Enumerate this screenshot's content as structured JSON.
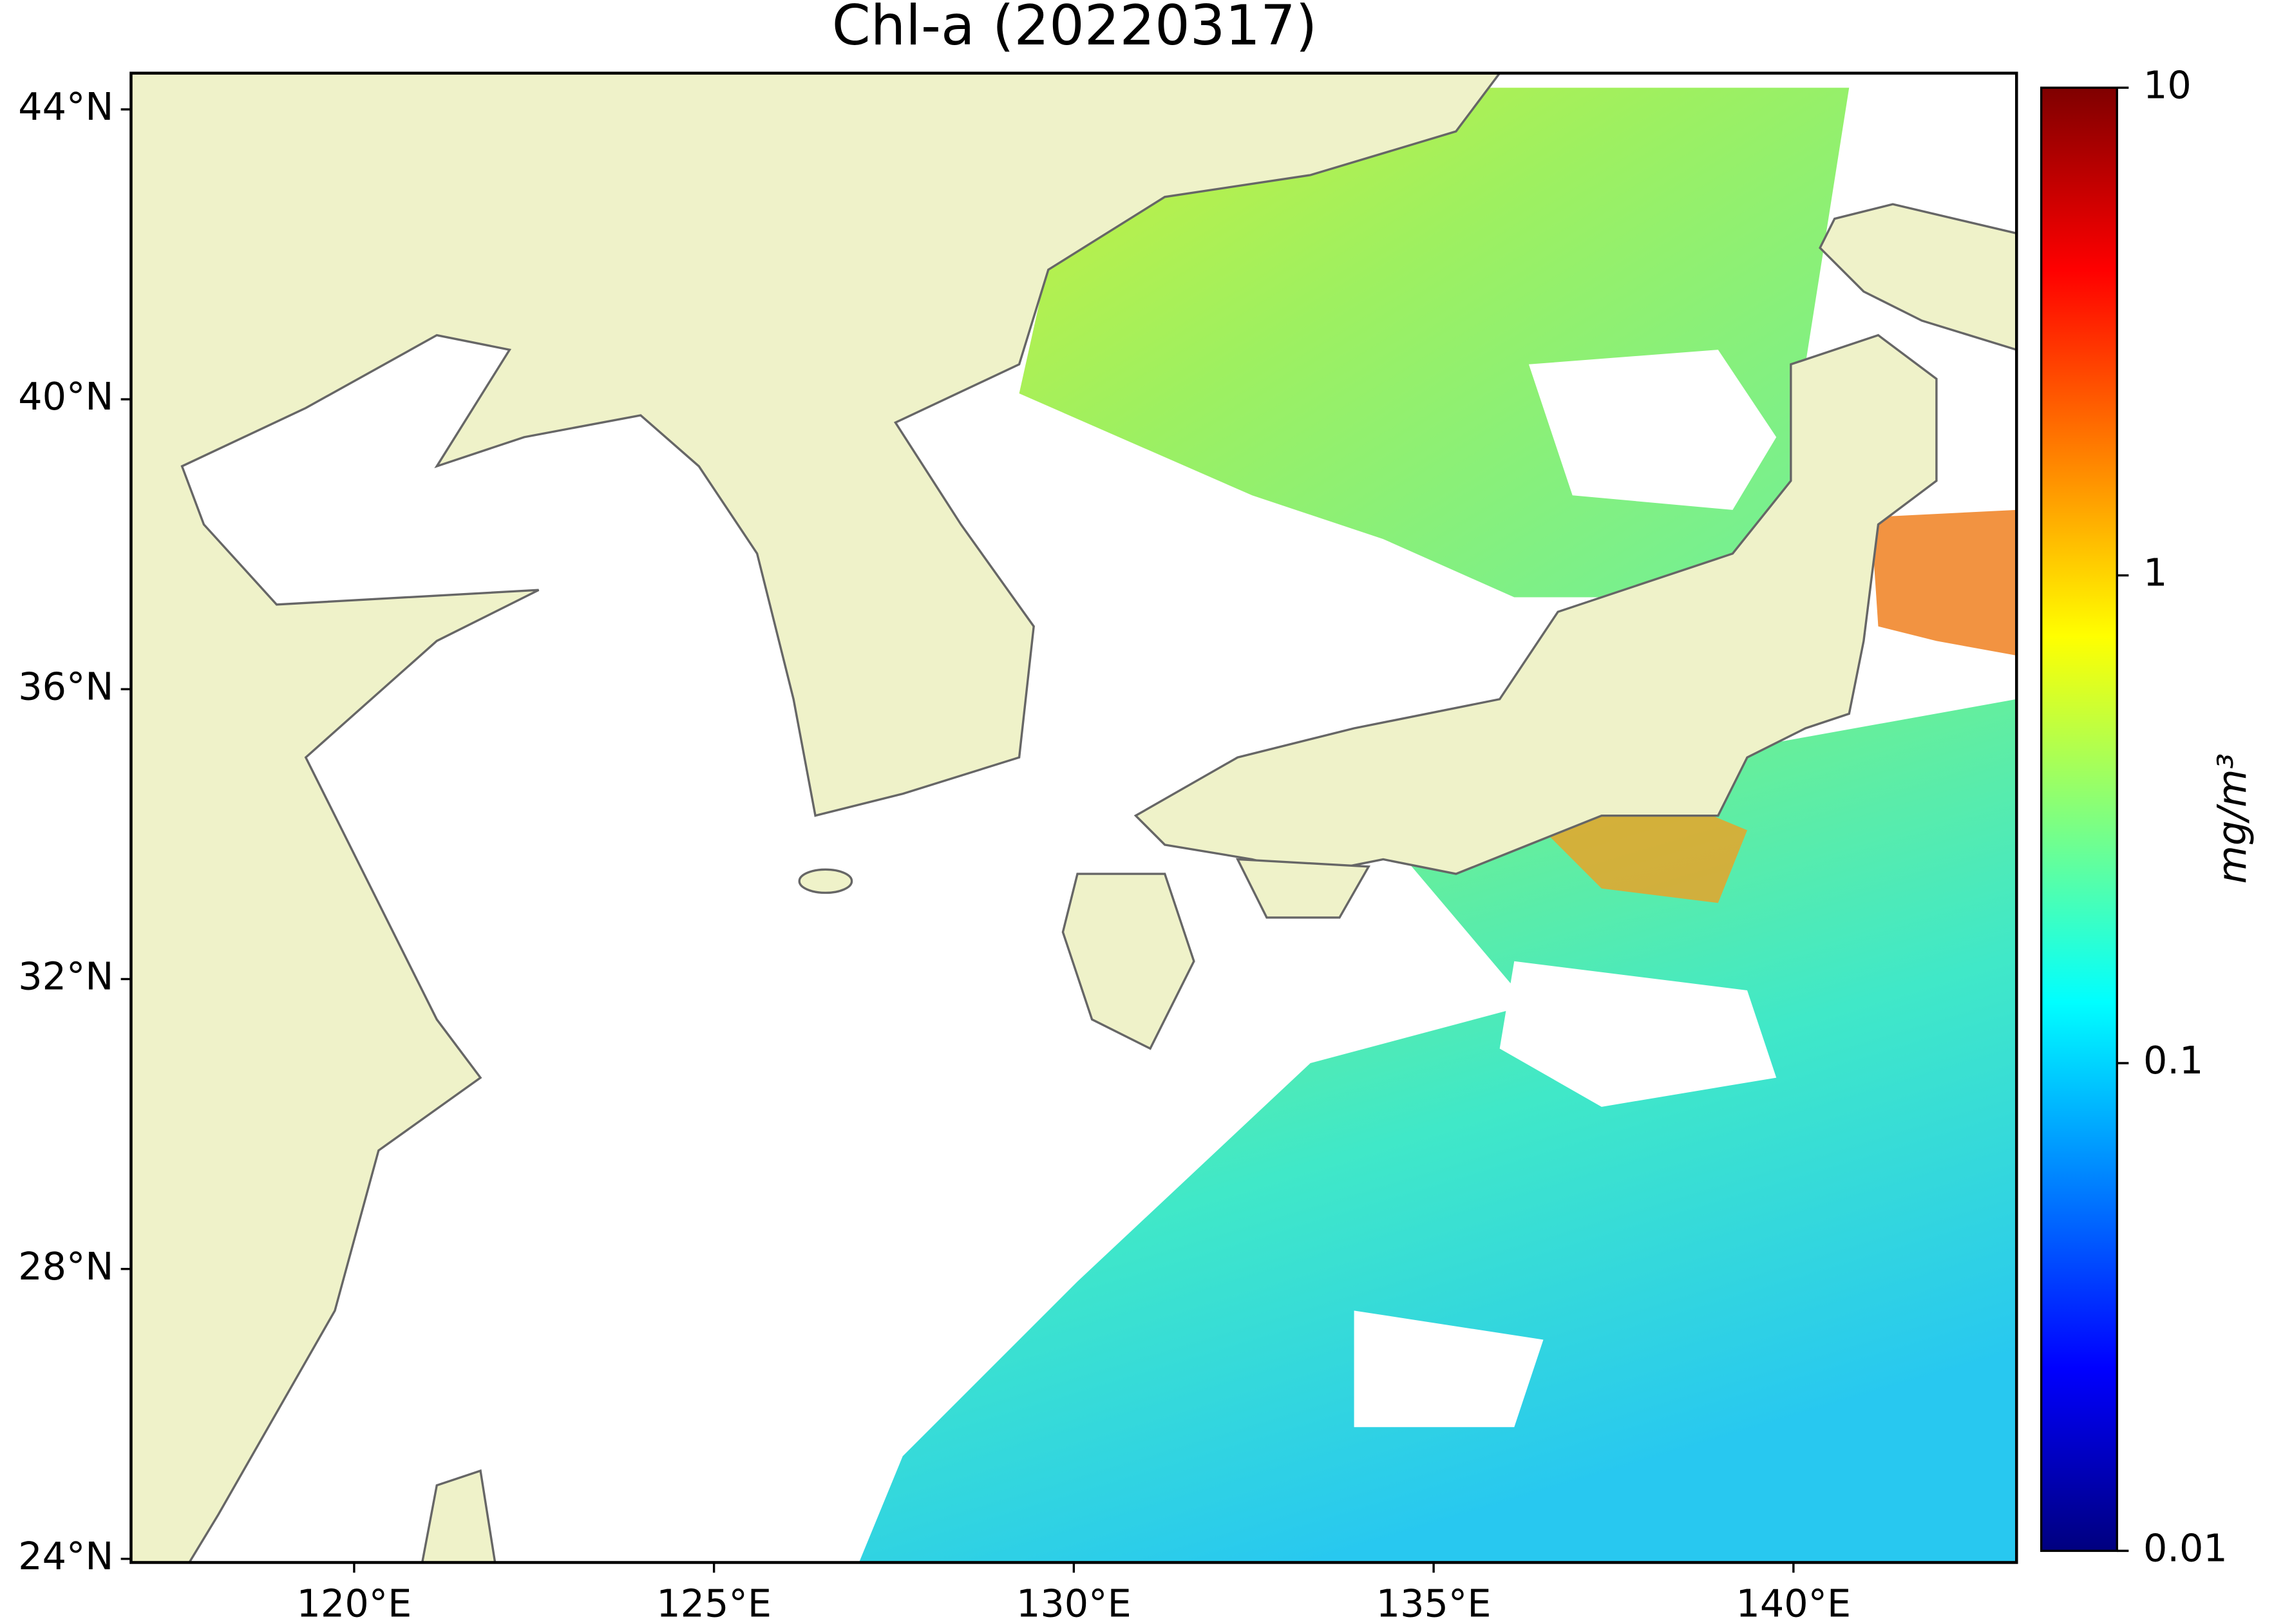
{
  "chart_data": {
    "type": "map",
    "title": "Chl-a (20220317)",
    "xlim": [
      116.9,
      143.1
    ],
    "ylim": [
      23.95,
      44.5
    ],
    "xticks": [
      {
        "value": 120,
        "label": "120°E"
      },
      {
        "value": 125,
        "label": "125°E"
      },
      {
        "value": 130,
        "label": "130°E"
      },
      {
        "value": 135,
        "label": "135°E"
      },
      {
        "value": 140,
        "label": "140°E"
      }
    ],
    "yticks": [
      {
        "value": 24,
        "label": "24°N"
      },
      {
        "value": 28,
        "label": "28°N"
      },
      {
        "value": 32,
        "label": "32°N"
      },
      {
        "value": 36,
        "label": "36°N"
      },
      {
        "value": 40,
        "label": "40°N"
      },
      {
        "value": 44,
        "label": "44°N"
      }
    ],
    "colorbar": {
      "label": "mg/m³",
      "lim": [
        0.01,
        10
      ],
      "log": true,
      "ticks": [
        0.01,
        0.1,
        1,
        10
      ]
    }
  }
}
